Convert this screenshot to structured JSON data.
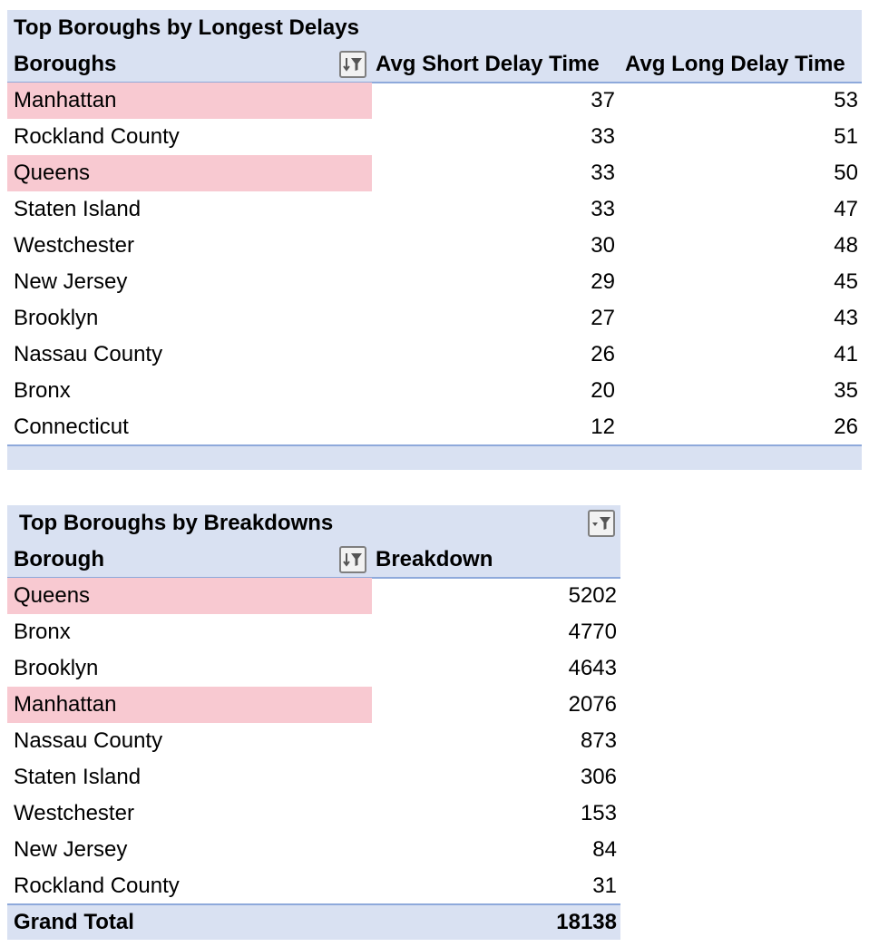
{
  "colors": {
    "header_fill": "#d9e1f2",
    "highlight_fill": "#f8c9d1",
    "divider": "#8ea9db"
  },
  "pivot1": {
    "title": "Top Boroughs by Longest Delays",
    "columns": [
      "Boroughs",
      "Avg Short Delay Time",
      "Avg Long Delay Time"
    ],
    "filter_icon": "sort-filter-icon",
    "rows": [
      {
        "name": "Manhattan",
        "short": "37",
        "long": "53",
        "highlight": true
      },
      {
        "name": "Rockland County",
        "short": "33",
        "long": "51",
        "highlight": false
      },
      {
        "name": "Queens",
        "short": "33",
        "long": "50",
        "highlight": true
      },
      {
        "name": "Staten Island",
        "short": "33",
        "long": "47",
        "highlight": false
      },
      {
        "name": "Westchester",
        "short": "30",
        "long": "48",
        "highlight": false
      },
      {
        "name": "New Jersey",
        "short": "29",
        "long": "45",
        "highlight": false
      },
      {
        "name": "Brooklyn",
        "short": "27",
        "long": "43",
        "highlight": false
      },
      {
        "name": "Nassau County",
        "short": "26",
        "long": "41",
        "highlight": false
      },
      {
        "name": "Bronx",
        "short": "20",
        "long": "35",
        "highlight": false
      },
      {
        "name": "Connecticut",
        "short": "12",
        "long": "26",
        "highlight": false
      }
    ]
  },
  "pivot2": {
    "title": "Top Boroughs by Breakdowns",
    "columns": [
      "Borough",
      "Breakdown"
    ],
    "title_filter_icon": "filter-dropdown-icon",
    "filter_icon": "sort-filter-icon",
    "rows": [
      {
        "name": "Queens",
        "value": "5202",
        "highlight": true
      },
      {
        "name": "Bronx",
        "value": "4770",
        "highlight": false
      },
      {
        "name": "Brooklyn",
        "value": "4643",
        "highlight": false
      },
      {
        "name": "Manhattan",
        "value": "2076",
        "highlight": true
      },
      {
        "name": "Nassau County",
        "value": "873",
        "highlight": false
      },
      {
        "name": "Staten Island",
        "value": "306",
        "highlight": false
      },
      {
        "name": "Westchester",
        "value": "153",
        "highlight": false
      },
      {
        "name": "New Jersey",
        "value": "84",
        "highlight": false
      },
      {
        "name": "Rockland County",
        "value": "31",
        "highlight": false
      }
    ],
    "grand_total": {
      "label": "Grand Total",
      "value": "18138"
    }
  }
}
